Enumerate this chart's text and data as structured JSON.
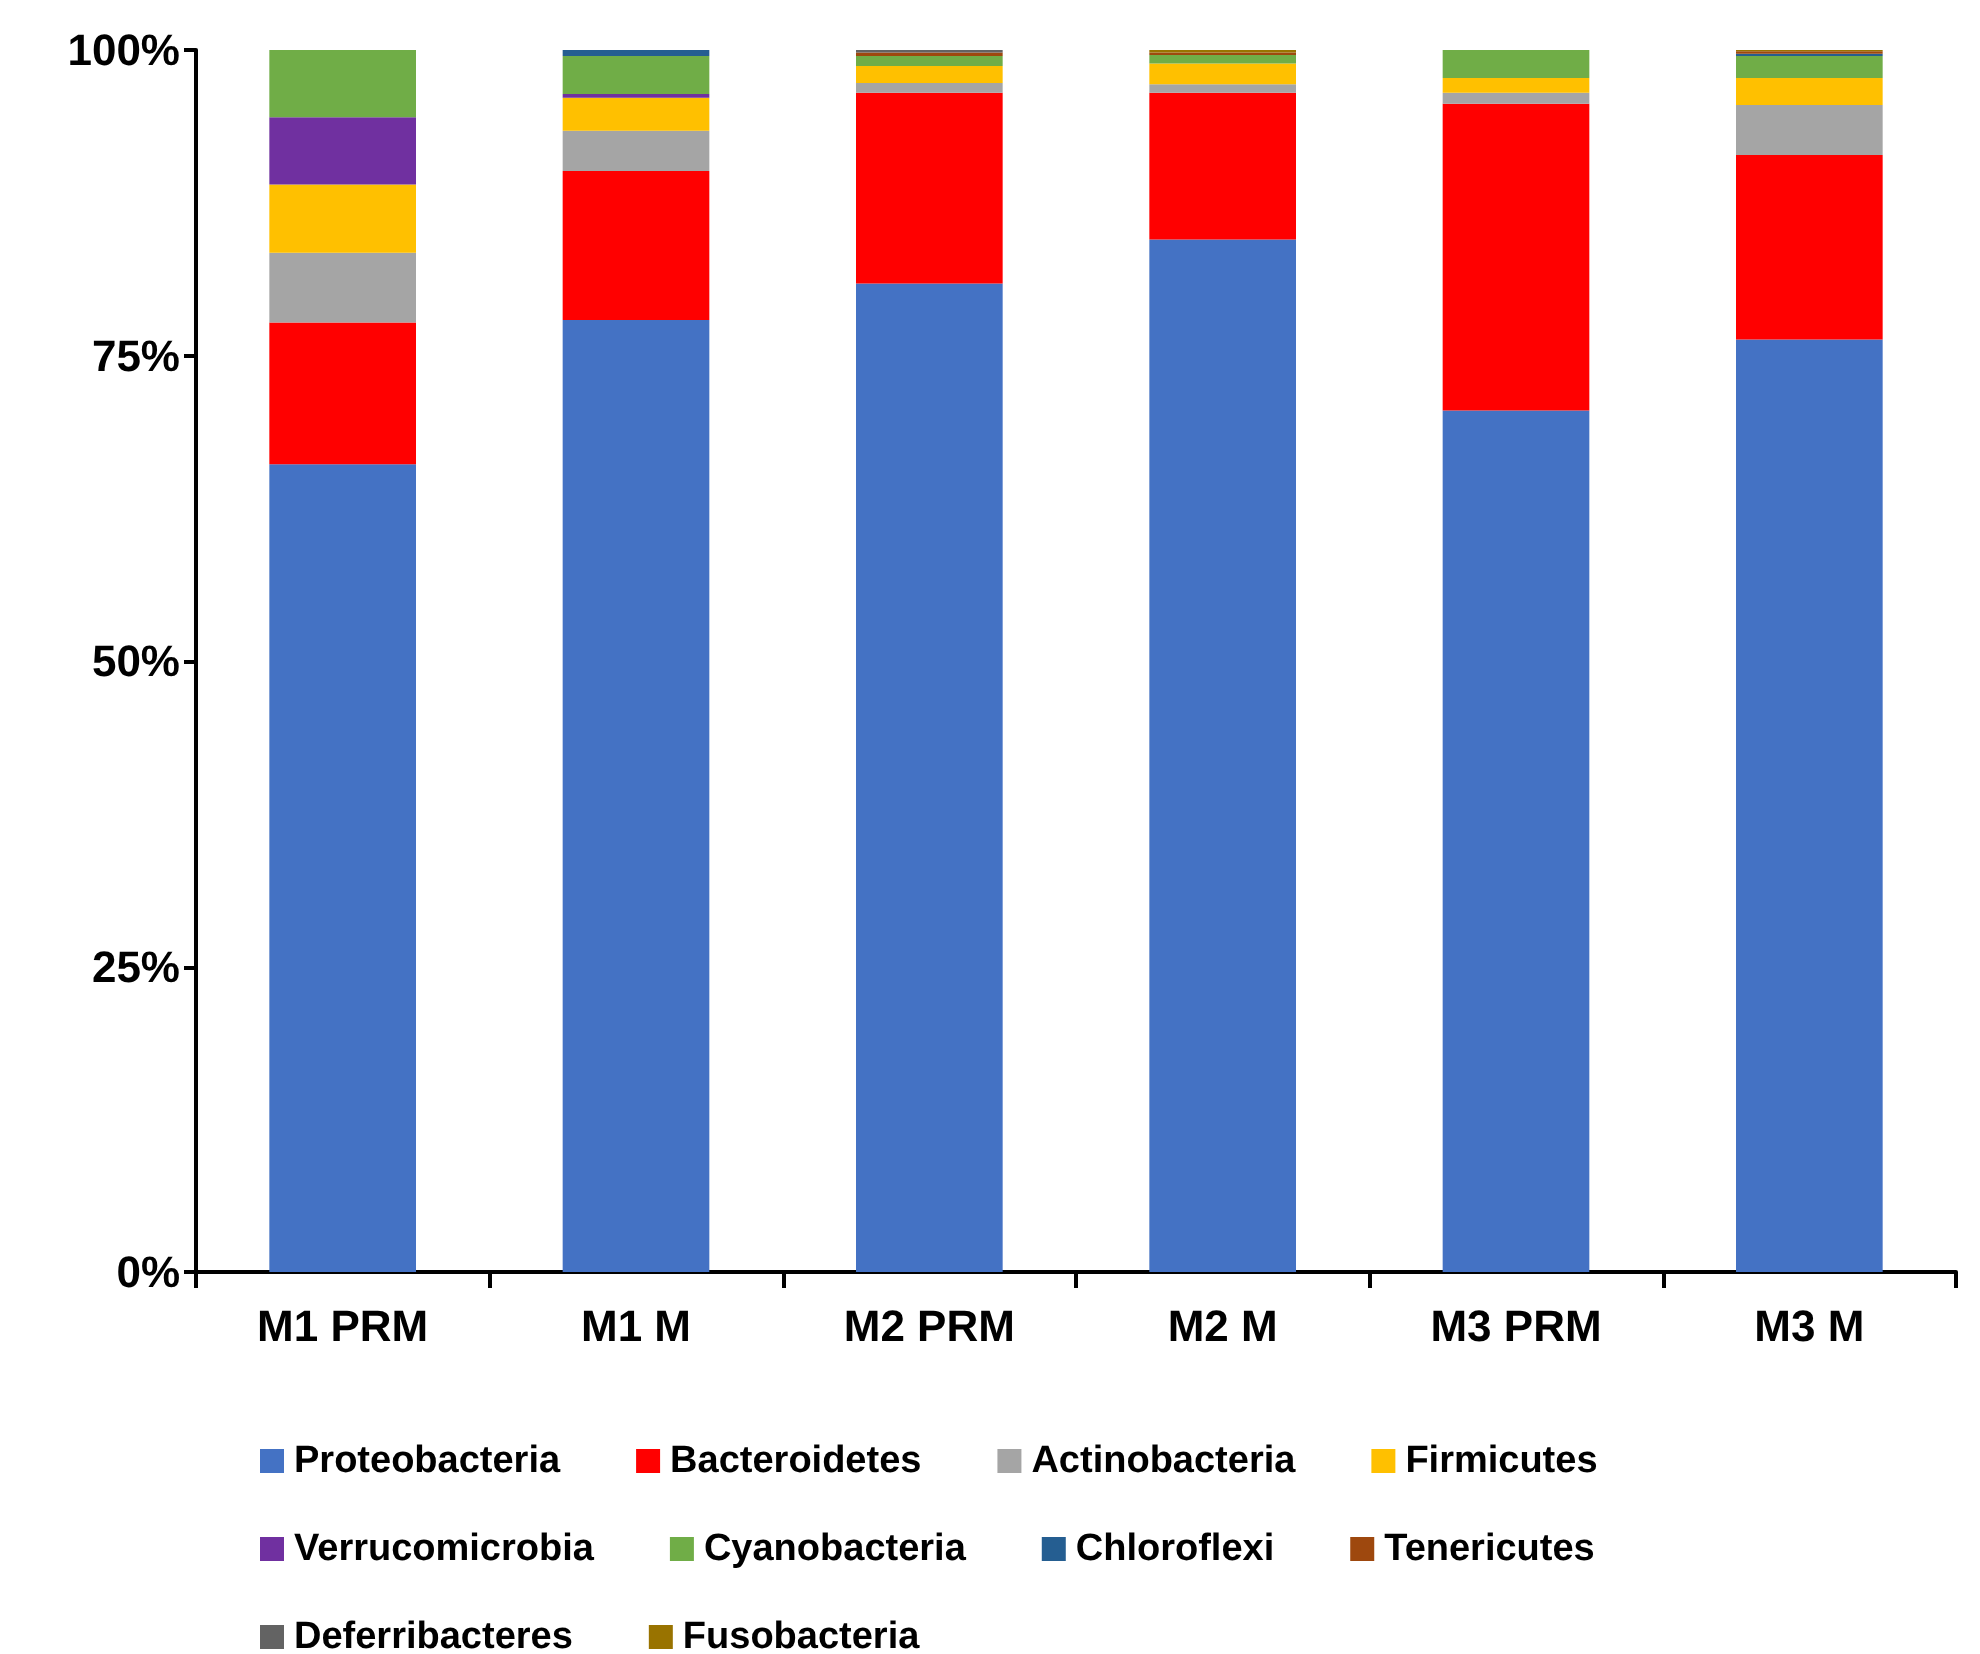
{
  "chart_data": {
    "type": "bar",
    "stacked": true,
    "categories": [
      "M1 PRM",
      "M1 M",
      "M2 PRM",
      "M2 M",
      "M3 PRM",
      "M3 M"
    ],
    "series": [
      {
        "name": "Proteobacteria",
        "color": "#4472c4",
        "values": [
          66.1,
          77.9,
          80.9,
          84.5,
          70.5,
          76.3
        ]
      },
      {
        "name": "Bacteroidetes",
        "color": "#ff0000",
        "values": [
          11.6,
          12.2,
          15.6,
          12.0,
          25.1,
          15.1
        ]
      },
      {
        "name": "Actinobacteria",
        "color": "#a5a5a5",
        "values": [
          5.7,
          3.3,
          0.8,
          0.7,
          0.9,
          4.1
        ]
      },
      {
        "name": "Firmicutes",
        "color": "#ffc000",
        "values": [
          5.6,
          2.7,
          1.4,
          1.7,
          1.2,
          2.2
        ]
      },
      {
        "name": "Verrucomicrobia",
        "color": "#7030a0",
        "values": [
          5.5,
          0.3,
          null,
          null,
          null,
          null
        ]
      },
      {
        "name": "Cyanobacteria",
        "color": "#70ad47",
        "values": [
          5.5,
          3.1,
          0.8,
          0.7,
          2.3,
          1.8
        ]
      },
      {
        "name": "Chloroflexi",
        "color": "#255e91",
        "values": [
          null,
          0.5,
          null,
          null,
          null,
          0.2
        ]
      },
      {
        "name": "Tenericutes",
        "color": "#9e480e",
        "values": [
          null,
          null,
          0.3,
          0.2,
          null,
          0.2
        ]
      },
      {
        "name": "Deferribacteres",
        "color": "#636363",
        "values": [
          null,
          null,
          0.2,
          null,
          null,
          null
        ]
      },
      {
        "name": "Fusobacteria",
        "color": "#997300",
        "values": [
          null,
          null,
          null,
          0.2,
          null,
          0.1
        ]
      }
    ],
    "ylim": [
      0,
      100
    ],
    "yticks": [
      {
        "value": 0,
        "label": "0%"
      },
      {
        "value": 25,
        "label": "25%"
      },
      {
        "value": 50,
        "label": "50%"
      },
      {
        "value": 75,
        "label": "75%"
      },
      {
        "value": 100,
        "label": "100%"
      }
    ],
    "grid": false,
    "legend": "bottom"
  }
}
